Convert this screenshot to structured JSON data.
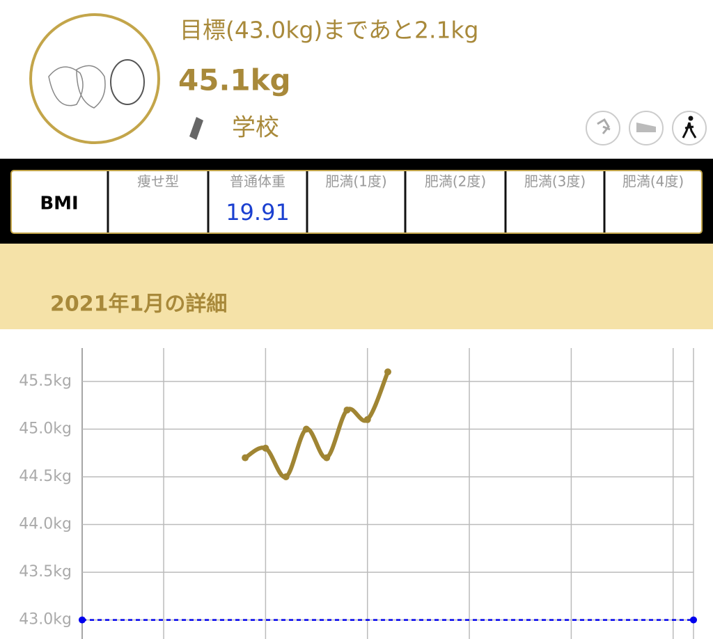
{
  "header": {
    "goal_text": "目標(43.0kg)まであと2.1kg",
    "weight": "45.1kg",
    "tag": "学校"
  },
  "bmi": {
    "label": "BMI",
    "columns": [
      {
        "name": "痩せ型"
      },
      {
        "name": "普通体重",
        "value": "19.91"
      },
      {
        "name": "肥満(1度)"
      },
      {
        "name": "肥満(2度)"
      },
      {
        "name": "肥満(3度)"
      },
      {
        "name": "肥満(4度)"
      }
    ]
  },
  "section_title": "2021年1月の詳細",
  "chart_data": {
    "type": "line",
    "x": [
      9,
      10,
      11,
      12,
      13,
      14,
      15,
      16
    ],
    "series": [
      {
        "color": "#a08533",
        "values": [
          44.7,
          44.8,
          44.5,
          45.0,
          44.7,
          45.2,
          45.1,
          45.6
        ]
      }
    ],
    "xlim": [
      1,
      31
    ],
    "xticks": [
      1,
      5,
      10,
      15,
      20,
      25,
      30,
      31
    ],
    "ylim": [
      42.8,
      45.85
    ],
    "yticks": [
      {
        "value": 43.0,
        "label": "43.0kg"
      },
      {
        "value": 43.5,
        "label": "43.5kg"
      },
      {
        "value": 44.0,
        "label": "44.0kg"
      },
      {
        "value": 44.5,
        "label": "44.5kg"
      },
      {
        "value": 45.0,
        "label": "45.0kg"
      },
      {
        "value": 45.5,
        "label": "45.5kg"
      }
    ],
    "grid": true,
    "goal_line": {
      "value": 43.0,
      "color": "#0000ee"
    }
  }
}
